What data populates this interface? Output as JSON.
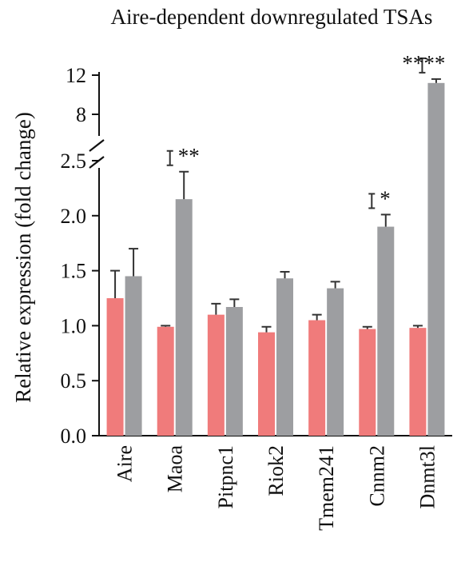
{
  "chart_data": {
    "type": "bar",
    "title": "Aire-dependent downregulated TSAs",
    "ylabel": "Relative expression (fold change)",
    "categories": [
      "Aire",
      "Maoa",
      "Pitpnc1",
      "Riok2",
      "Tmem241",
      "Cnnm2",
      "Dnmt3l"
    ],
    "series": [
      {
        "color": "#f07b7b",
        "values": [
          1.25,
          0.99,
          1.1,
          0.94,
          1.05,
          0.97,
          0.98
        ],
        "errors": [
          0.25,
          0.01,
          0.1,
          0.05,
          0.05,
          0.02,
          0.02
        ]
      },
      {
        "color": "#9d9ea1",
        "values": [
          1.45,
          2.15,
          1.17,
          1.43,
          1.34,
          1.9,
          11.2
        ],
        "errors": [
          0.25,
          0.25,
          0.07,
          0.06,
          0.06,
          0.11,
          0.4
        ]
      }
    ],
    "y_axis": {
      "broken": true,
      "lower_range": [
        0,
        2.5
      ],
      "lower_ticks": [
        "0.0",
        "0.5",
        "1.0",
        "1.5",
        "2.0",
        "2.5"
      ],
      "upper_range": [
        6.5,
        12
      ],
      "upper_ticks": [
        "8",
        "12"
      ]
    },
    "significance": [
      {
        "category": "Maoa",
        "label": "**"
      },
      {
        "category": "Cnnm2",
        "label": "*"
      },
      {
        "category": "Dnmt3l",
        "label": "****"
      }
    ],
    "grid": false,
    "legend": "none"
  }
}
